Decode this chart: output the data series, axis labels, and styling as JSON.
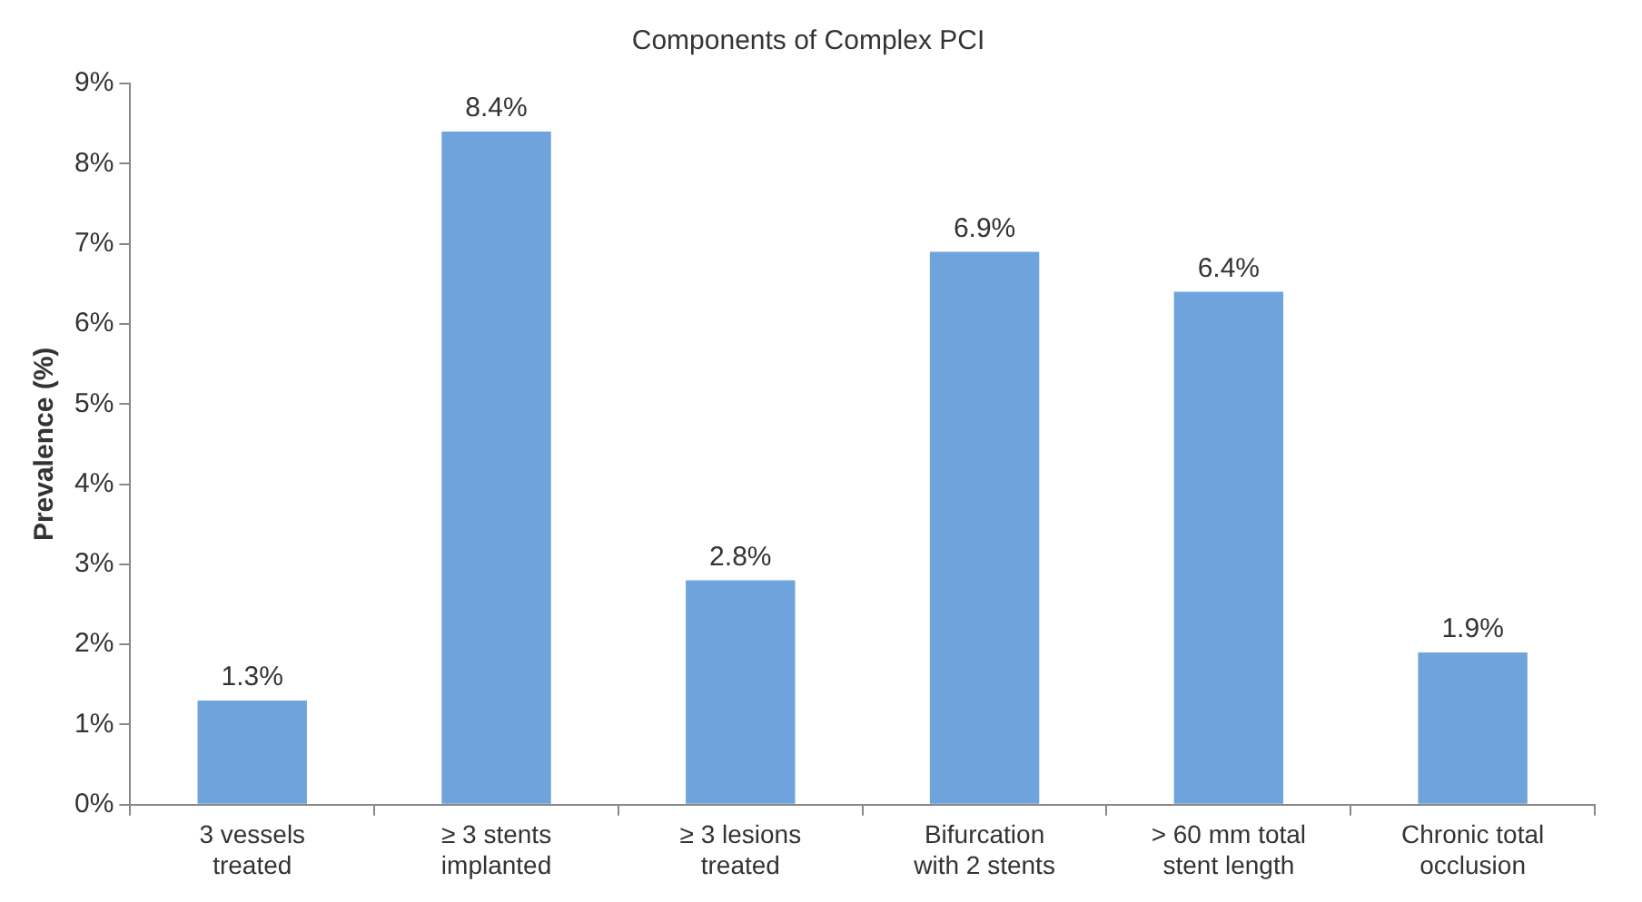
{
  "chart_data": {
    "type": "bar",
    "title": "Components of Complex PCI",
    "ylabel": "Prevalence (%)",
    "categories": [
      "3 vessels\ntreated",
      "≥ 3 stents\nimplanted",
      "≥ 3 lesions\ntreated",
      "Bifurcation\nwith 2 stents",
      "> 60 mm total\nstent length",
      "Chronic total\nocclusion"
    ],
    "values": [
      1.3,
      8.4,
      2.8,
      6.9,
      6.4,
      1.9
    ],
    "value_labels": [
      "1.3%",
      "8.4%",
      "2.8%",
      "6.9%",
      "6.4%",
      "1.9%"
    ],
    "color": "#6fa3dc",
    "ylim": [
      0,
      9
    ],
    "yticks": [
      {
        "value": 0,
        "label": "0%"
      },
      {
        "value": 1,
        "label": "1%"
      },
      {
        "value": 2,
        "label": "2%"
      },
      {
        "value": 3,
        "label": "3%"
      },
      {
        "value": 4,
        "label": "4%"
      },
      {
        "value": 5,
        "label": "5%"
      },
      {
        "value": 6,
        "label": "6%"
      },
      {
        "value": 7,
        "label": "7%"
      },
      {
        "value": 8,
        "label": "8%"
      },
      {
        "value": 9,
        "label": "9%"
      }
    ],
    "grid": false,
    "legend": false
  }
}
